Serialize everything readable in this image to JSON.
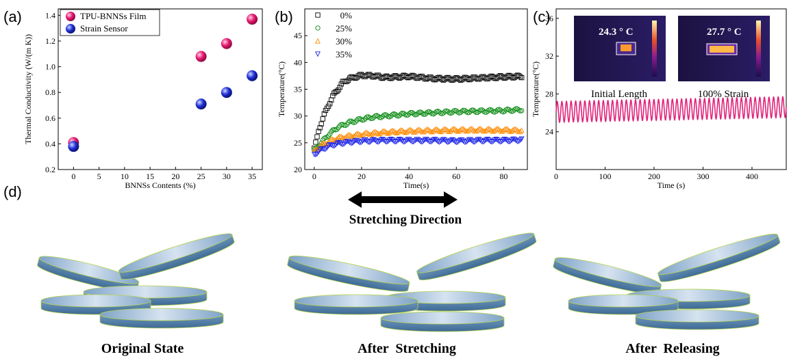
{
  "panels": {
    "a": "(a)",
    "b": "(b)",
    "c": "(c)",
    "d": "(d)"
  },
  "chart_data": [
    {
      "type": "scatter",
      "xlabel": "BNNSs Contents (%)",
      "ylabel": "Thermal Conductivity (W/(m K))",
      "xlim": [
        -3,
        37
      ],
      "ylim": [
        0.2,
        1.45
      ],
      "xticks": [
        0,
        5,
        10,
        15,
        20,
        25,
        30,
        35
      ],
      "yticks": [
        0.2,
        0.4,
        0.6,
        0.8,
        1.0,
        1.2,
        1.4
      ],
      "xtick_labels": [
        "0",
        "5",
        "10",
        "15",
        "20",
        "25",
        "30",
        "35"
      ],
      "ytick_labels": [
        "0.2",
        "0.4",
        "0.6",
        "0.8",
        "1.0",
        "1.2",
        "1.4"
      ],
      "legend_position": "top-left",
      "series": [
        {
          "name": "TPU-BNNSs Film",
          "color": "#e8176f",
          "x": [
            0,
            25,
            30,
            35
          ],
          "y": [
            0.41,
            1.08,
            1.18,
            1.37
          ]
        },
        {
          "name": "Strain Sensor",
          "color": "#1f2fd6",
          "x": [
            0,
            25,
            30,
            35
          ],
          "y": [
            0.38,
            0.71,
            0.8,
            0.93
          ]
        }
      ]
    },
    {
      "type": "scatter",
      "xlabel": "Time(s)",
      "ylabel": "Temperature(°C)",
      "xlim": [
        -4,
        90
      ],
      "ylim": [
        20,
        50
      ],
      "xticks": [
        0,
        20,
        40,
        60,
        80
      ],
      "yticks": [
        20,
        25,
        30,
        35,
        40,
        45
      ],
      "xtick_labels": [
        "0",
        "20",
        "40",
        "60",
        "80"
      ],
      "ytick_labels": [
        "20",
        "25",
        "30",
        "35",
        "40",
        "45"
      ],
      "legend_position": "top-left",
      "series": [
        {
          "name": "0%",
          "color": "#000000",
          "marker": "square",
          "x": [
            0,
            1,
            2,
            4,
            6,
            8,
            10,
            12,
            15,
            20,
            25,
            30,
            40,
            50,
            60,
            70,
            80,
            88
          ],
          "y": [
            24.0,
            25.5,
            27.5,
            30.0,
            32.0,
            33.8,
            35.0,
            36.2,
            37.0,
            37.6,
            37.5,
            37.2,
            37.4,
            37.0,
            36.9,
            37.1,
            37.3,
            37.4
          ]
        },
        {
          "name": "25%",
          "color": "#0b8a12",
          "marker": "circle",
          "x": [
            0,
            2,
            4,
            6,
            8,
            10,
            15,
            20,
            25,
            30,
            40,
            50,
            60,
            70,
            80,
            88
          ],
          "y": [
            23.5,
            24.5,
            25.5,
            26.5,
            27.2,
            27.9,
            28.8,
            29.4,
            29.8,
            30.0,
            30.4,
            30.6,
            30.8,
            30.9,
            31.0,
            31.2
          ]
        },
        {
          "name": "30%",
          "color": "#ff8a00",
          "marker": "triangle-up",
          "x": [
            0,
            2,
            4,
            6,
            8,
            10,
            15,
            20,
            25,
            30,
            40,
            50,
            60,
            70,
            80,
            88
          ],
          "y": [
            23.5,
            24.2,
            24.8,
            25.2,
            25.6,
            25.9,
            26.3,
            26.6,
            26.8,
            27.0,
            27.2,
            27.3,
            27.4,
            27.4,
            27.4,
            27.3
          ]
        },
        {
          "name": "35%",
          "color": "#1a22e8",
          "marker": "triangle-down",
          "x": [
            0,
            2,
            4,
            6,
            8,
            10,
            15,
            20,
            30,
            40,
            50,
            60,
            70,
            80,
            88
          ],
          "y": [
            22.8,
            23.4,
            23.9,
            24.3,
            24.6,
            24.8,
            25.1,
            25.3,
            25.4,
            25.4,
            25.4,
            25.3,
            25.4,
            25.4,
            25.5
          ]
        }
      ]
    },
    {
      "type": "line",
      "xlabel": "Time (s)",
      "ylabel": "Temperature(°C)",
      "xlim": [
        0,
        470
      ],
      "ylim": [
        20,
        37
      ],
      "xticks": [
        0,
        100,
        200,
        300,
        400
      ],
      "yticks": [
        24,
        28,
        32,
        36
      ],
      "xtick_labels": [
        "0",
        "100",
        "200",
        "300",
        "400"
      ],
      "ytick_labels": [
        "24",
        "28",
        "32",
        "36"
      ],
      "series": [
        {
          "color": "#e0227a",
          "x_start": 0,
          "x_end": 470,
          "cycles": 50,
          "baseline": 26.1,
          "amplitude": 1.1,
          "drift": 0.5
        }
      ],
      "insets": [
        {
          "temperature_label": "24.3 ° C",
          "caption": "Initial Length"
        },
        {
          "temperature_label": "27.7 ° C",
          "caption": "100% Strain"
        }
      ]
    }
  ],
  "schematic": {
    "direction_label": "Stretching Direction",
    "states": [
      "Original State",
      "After  Stretching",
      "After  Releasing"
    ],
    "disk_fill_top": "#c7d7e8",
    "disk_fill_side": "#5c86ad",
    "disk_edge": "#b6d34a"
  }
}
